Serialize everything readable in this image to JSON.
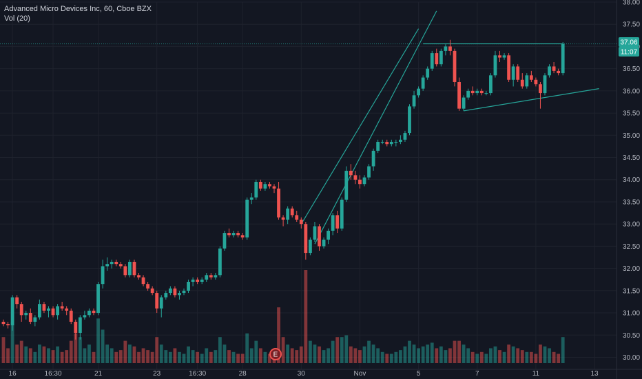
{
  "legend": {
    "title": "Advanced Micro Devices Inc, 60, Cboe BZX",
    "volume": "Vol (20)"
  },
  "price_badge": "37.06",
  "time_badge": "11:07",
  "earnings_marker": "E",
  "colors": {
    "background": "#131722",
    "up": "#26a69a",
    "down": "#ef5350",
    "grid": "#1e222d",
    "pattern": "#26a69a"
  },
  "chart_data": {
    "type": "candlestick",
    "ylim": [
      29.75,
      38.0
    ],
    "yticks": [
      "30.00",
      "30.50",
      "31.00",
      "31.50",
      "32.00",
      "32.50",
      "33.00",
      "33.50",
      "34.00",
      "34.50",
      "35.00",
      "35.50",
      "36.00",
      "36.50",
      "37.00",
      "37.50",
      "38.00"
    ],
    "xticks": [
      {
        "label": "16",
        "i": 2
      },
      {
        "label": "16:30",
        "i": 11
      },
      {
        "label": "21",
        "i": 21
      },
      {
        "label": "23",
        "i": 34
      },
      {
        "label": "16:30",
        "i": 43
      },
      {
        "label": "28",
        "i": 53
      },
      {
        "label": "30",
        "i": 66
      },
      {
        "label": "Nov",
        "i": 79
      },
      {
        "label": "5",
        "i": 92
      },
      {
        "label": "7",
        "i": 105
      },
      {
        "label": "11",
        "i": 118
      },
      {
        "label": "13",
        "i": 131
      }
    ],
    "candles": [
      [
        30.8,
        30.85,
        30.7,
        30.75,
        14
      ],
      [
        30.75,
        30.8,
        30.65,
        30.72,
        8
      ],
      [
        30.72,
        31.4,
        30.6,
        31.35,
        22
      ],
      [
        31.35,
        31.4,
        31.1,
        31.2,
        10
      ],
      [
        31.2,
        31.25,
        30.8,
        30.95,
        12
      ],
      [
        30.95,
        31.05,
        30.85,
        31.0,
        9
      ],
      [
        31.0,
        31.1,
        30.75,
        30.8,
        8
      ],
      [
        30.8,
        30.95,
        30.7,
        30.9,
        6
      ],
      [
        30.9,
        31.3,
        30.85,
        31.2,
        10
      ],
      [
        31.2,
        31.25,
        31.0,
        31.05,
        9
      ],
      [
        31.05,
        31.15,
        30.9,
        31.1,
        8
      ],
      [
        31.1,
        31.15,
        30.9,
        30.95,
        7
      ],
      [
        30.95,
        31.2,
        30.85,
        31.15,
        9
      ],
      [
        31.15,
        31.25,
        31.05,
        31.1,
        6
      ],
      [
        31.1,
        31.15,
        30.95,
        31.05,
        7
      ],
      [
        31.05,
        31.1,
        30.75,
        30.8,
        12
      ],
      [
        30.8,
        30.85,
        30.4,
        30.55,
        16
      ],
      [
        30.55,
        30.95,
        30.4,
        30.9,
        14
      ],
      [
        30.9,
        31.05,
        30.85,
        30.95,
        8
      ],
      [
        30.95,
        31.1,
        30.9,
        31.05,
        10
      ],
      [
        31.05,
        31.1,
        30.95,
        31.0,
        6
      ],
      [
        31.0,
        31.7,
        30.95,
        31.65,
        24
      ],
      [
        31.65,
        32.2,
        31.55,
        32.05,
        18
      ],
      [
        32.05,
        32.25,
        31.95,
        32.1,
        10
      ],
      [
        32.1,
        32.2,
        32.0,
        32.15,
        8
      ],
      [
        32.15,
        32.2,
        32.05,
        32.1,
        6
      ],
      [
        32.1,
        32.15,
        32.0,
        32.05,
        7
      ],
      [
        32.05,
        32.1,
        31.8,
        31.85,
        12
      ],
      [
        31.85,
        32.2,
        31.8,
        32.15,
        10
      ],
      [
        32.15,
        32.2,
        31.8,
        31.85,
        9
      ],
      [
        31.85,
        31.9,
        31.75,
        31.8,
        6
      ],
      [
        31.8,
        31.85,
        31.6,
        31.65,
        8
      ],
      [
        31.65,
        31.7,
        31.5,
        31.55,
        7
      ],
      [
        31.55,
        31.6,
        31.4,
        31.45,
        6
      ],
      [
        31.45,
        31.5,
        31.0,
        31.1,
        14
      ],
      [
        31.1,
        31.4,
        30.9,
        31.35,
        10
      ],
      [
        31.35,
        31.5,
        31.3,
        31.45,
        7
      ],
      [
        31.45,
        31.6,
        31.4,
        31.55,
        6
      ],
      [
        31.55,
        31.6,
        31.35,
        31.4,
        8
      ],
      [
        31.4,
        31.5,
        31.3,
        31.45,
        6
      ],
      [
        31.45,
        31.55,
        31.4,
        31.5,
        5
      ],
      [
        31.5,
        31.75,
        31.45,
        31.7,
        9
      ],
      [
        31.7,
        31.8,
        31.6,
        31.75,
        7
      ],
      [
        31.75,
        31.8,
        31.65,
        31.7,
        6
      ],
      [
        31.7,
        31.8,
        31.65,
        31.75,
        5
      ],
      [
        31.75,
        31.9,
        31.7,
        31.85,
        8
      ],
      [
        31.85,
        31.9,
        31.75,
        31.8,
        6
      ],
      [
        31.8,
        31.9,
        31.75,
        31.85,
        7
      ],
      [
        31.85,
        32.5,
        31.8,
        32.45,
        14
      ],
      [
        32.45,
        32.85,
        32.4,
        32.8,
        10
      ],
      [
        32.8,
        32.9,
        32.7,
        32.75,
        7
      ],
      [
        32.75,
        32.85,
        32.7,
        32.8,
        6
      ],
      [
        32.8,
        32.85,
        32.7,
        32.75,
        5
      ],
      [
        32.75,
        32.8,
        32.65,
        32.7,
        5
      ],
      [
        32.7,
        33.6,
        32.65,
        33.55,
        16
      ],
      [
        33.55,
        33.7,
        33.45,
        33.6,
        8
      ],
      [
        33.6,
        34.0,
        33.55,
        33.95,
        12
      ],
      [
        33.95,
        34.0,
        33.75,
        33.8,
        8
      ],
      [
        33.8,
        33.95,
        33.75,
        33.9,
        6
      ],
      [
        33.9,
        33.95,
        33.8,
        33.85,
        5
      ],
      [
        33.85,
        33.9,
        33.7,
        33.8,
        6
      ],
      [
        33.8,
        33.95,
        33.1,
        33.15,
        30
      ],
      [
        33.15,
        33.2,
        32.95,
        33.1,
        14
      ],
      [
        33.1,
        33.4,
        33.0,
        33.35,
        10
      ],
      [
        33.35,
        33.4,
        33.15,
        33.2,
        8
      ],
      [
        33.2,
        33.3,
        33.05,
        33.1,
        7
      ],
      [
        33.1,
        33.15,
        32.9,
        33.0,
        9
      ],
      [
        33.0,
        33.05,
        32.2,
        32.35,
        50
      ],
      [
        32.35,
        32.7,
        32.3,
        32.65,
        12
      ],
      [
        32.65,
        33.05,
        32.6,
        32.95,
        10
      ],
      [
        32.95,
        33.0,
        32.4,
        32.5,
        9
      ],
      [
        32.5,
        32.7,
        32.45,
        32.65,
        7
      ],
      [
        32.65,
        32.9,
        32.55,
        32.85,
        8
      ],
      [
        32.85,
        33.25,
        32.75,
        33.2,
        12
      ],
      [
        33.2,
        33.3,
        32.8,
        32.9,
        14
      ],
      [
        32.9,
        33.6,
        32.85,
        33.55,
        14
      ],
      [
        33.55,
        34.3,
        33.5,
        34.2,
        15
      ],
      [
        34.2,
        34.35,
        34.0,
        34.1,
        9
      ],
      [
        34.1,
        34.2,
        33.9,
        34.0,
        8
      ],
      [
        34.0,
        34.1,
        33.8,
        33.9,
        7
      ],
      [
        33.9,
        34.1,
        33.85,
        34.05,
        9
      ],
      [
        34.05,
        34.35,
        34.0,
        34.3,
        12
      ],
      [
        34.3,
        34.7,
        34.2,
        34.65,
        10
      ],
      [
        34.65,
        34.9,
        34.6,
        34.85,
        8
      ],
      [
        34.85,
        34.9,
        34.8,
        34.85,
        6
      ],
      [
        34.85,
        34.9,
        34.75,
        34.8,
        5
      ],
      [
        34.8,
        34.9,
        34.75,
        34.85,
        5
      ],
      [
        34.85,
        34.9,
        34.75,
        34.85,
        6
      ],
      [
        34.85,
        35.0,
        34.8,
        34.9,
        7
      ],
      [
        34.9,
        35.1,
        34.85,
        35.05,
        9
      ],
      [
        35.05,
        35.7,
        35.0,
        35.65,
        12
      ],
      [
        35.65,
        36.0,
        35.6,
        35.9,
        10
      ],
      [
        35.9,
        36.1,
        35.85,
        36.05,
        8
      ],
      [
        36.05,
        36.35,
        36.0,
        36.3,
        9
      ],
      [
        36.3,
        36.55,
        36.25,
        36.5,
        10
      ],
      [
        36.5,
        36.9,
        36.45,
        36.85,
        11
      ],
      [
        36.85,
        36.95,
        36.55,
        36.6,
        8
      ],
      [
        36.6,
        36.95,
        36.55,
        36.9,
        9
      ],
      [
        36.9,
        37.05,
        36.8,
        37.0,
        7
      ],
      [
        37.0,
        37.15,
        36.8,
        36.9,
        8
      ],
      [
        36.9,
        36.95,
        36.1,
        36.2,
        12
      ],
      [
        36.2,
        36.3,
        35.55,
        35.6,
        12
      ],
      [
        35.6,
        35.9,
        35.55,
        35.85,
        10
      ],
      [
        35.85,
        36.05,
        35.8,
        36.0,
        8
      ],
      [
        36.0,
        36.1,
        35.9,
        35.95,
        6
      ],
      [
        35.95,
        36.05,
        35.9,
        36.0,
        5
      ],
      [
        36.0,
        36.05,
        35.9,
        35.95,
        6
      ],
      [
        35.95,
        36.0,
        35.9,
        35.95,
        5
      ],
      [
        35.95,
        36.4,
        35.9,
        36.35,
        8
      ],
      [
        36.35,
        36.9,
        36.3,
        36.8,
        9
      ],
      [
        36.8,
        36.9,
        36.65,
        36.75,
        7
      ],
      [
        36.75,
        36.85,
        36.7,
        36.8,
        6
      ],
      [
        36.8,
        36.85,
        36.2,
        36.25,
        10
      ],
      [
        36.25,
        36.6,
        36.1,
        36.55,
        9
      ],
      [
        36.55,
        36.6,
        36.2,
        36.25,
        8
      ],
      [
        36.25,
        36.4,
        36.05,
        36.1,
        7
      ],
      [
        36.1,
        36.4,
        36.05,
        36.35,
        6
      ],
      [
        36.35,
        36.45,
        36.2,
        36.25,
        6
      ],
      [
        36.25,
        36.3,
        36.1,
        36.15,
        5
      ],
      [
        36.15,
        36.2,
        35.6,
        35.95,
        10
      ],
      [
        35.95,
        36.4,
        35.9,
        36.35,
        9
      ],
      [
        36.35,
        36.6,
        36.3,
        36.55,
        8
      ],
      [
        36.55,
        36.65,
        36.4,
        36.45,
        6
      ],
      [
        36.45,
        36.5,
        36.35,
        36.4,
        5
      ],
      [
        36.4,
        37.1,
        36.35,
        37.06,
        14
      ]
    ],
    "pattern_lines": [
      {
        "from": [
          66,
          33.0
        ],
        "to": [
          92,
          37.4
        ],
        "label": "channel-upper-line"
      },
      {
        "from": [
          69,
          32.55
        ],
        "to": [
          96,
          37.8
        ],
        "label": "channel-lower-line"
      },
      {
        "from": [
          93,
          37.06
        ],
        "to": [
          124,
          37.06
        ],
        "label": "flag-top-line"
      },
      {
        "from": [
          102,
          35.55
        ],
        "to": [
          132,
          36.05
        ],
        "label": "flag-bottom-line"
      }
    ],
    "horizontal_line": 37.06
  }
}
